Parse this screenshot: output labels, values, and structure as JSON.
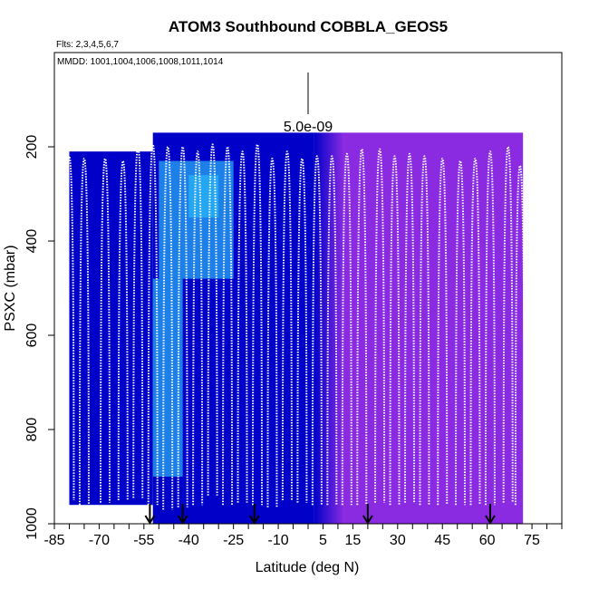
{
  "chart_data": {
    "type": "heatmap",
    "title": "ATOM3 Southbound COBBLA_GEOS5",
    "flights_note": "Flts: 2,3,4,5,6,7",
    "dates_note": "MMDD: 1001,1004,1006,1008,1011,1014",
    "xlabel": "Latitude (deg N)",
    "ylabel": "PSXC (mbar)",
    "xlim": [
      -85,
      85
    ],
    "ylim": [
      1000,
      0
    ],
    "x_ticks": [
      -85,
      -70,
      -55,
      -40,
      -25,
      -10,
      5,
      15,
      30,
      45,
      60,
      75
    ],
    "x_tick_labels": [
      "-85",
      "-70",
      "-55",
      "-40",
      "-25",
      "-10",
      "5",
      "15",
      "30",
      "45",
      "60",
      "75"
    ],
    "y_ticks": [
      200,
      400,
      600,
      800,
      1000
    ],
    "y_tick_labels": [
      "200",
      "400",
      "600",
      "800",
      "1000"
    ],
    "scale_bar_label": "5.0e-09",
    "arrow_latitudes": [
      -53,
      -42,
      -18,
      20,
      61
    ],
    "color_scale": {
      "low": "#0000c8",
      "mid": "#29b6f6",
      "high": "#8a2be2"
    },
    "regions": [
      {
        "lat": [
          -80,
          -52
        ],
        "p": [
          210,
          960
        ],
        "shade": "low"
      },
      {
        "lat": [
          -52,
          -17
        ],
        "p": [
          170,
          1000
        ],
        "shade": "low"
      },
      {
        "lat": [
          -17,
          2
        ],
        "p": [
          170,
          1000
        ],
        "shade": "low"
      },
      {
        "lat": [
          2,
          12
        ],
        "p": [
          170,
          1000
        ],
        "shade": "transition"
      },
      {
        "lat": [
          12,
          72
        ],
        "p": [
          170,
          1000
        ],
        "shade": "high"
      },
      {
        "lat": [
          -50,
          -25
        ],
        "p": [
          230,
          480
        ],
        "shade": "mid"
      },
      {
        "lat": [
          -52,
          -42
        ],
        "p": [
          480,
          900
        ],
        "shade": "mid"
      },
      {
        "lat": [
          -40,
          -30
        ],
        "p": [
          260,
          350
        ],
        "shade": "mid"
      }
    ],
    "profiles": [
      {
        "lat": -80,
        "top": 220,
        "bottom": 950
      },
      {
        "lat": -75,
        "top": 225,
        "bottom": 960
      },
      {
        "lat": -68,
        "top": 225,
        "bottom": 955
      },
      {
        "lat": -62,
        "top": 230,
        "bottom": 950
      },
      {
        "lat": -57,
        "top": 200,
        "bottom": 945
      },
      {
        "lat": -52,
        "top": 195,
        "bottom": 960
      },
      {
        "lat": -47,
        "top": 200,
        "bottom": 970
      },
      {
        "lat": -42,
        "top": 200,
        "bottom": 965
      },
      {
        "lat": -37,
        "top": 210,
        "bottom": 960
      },
      {
        "lat": -32,
        "top": 195,
        "bottom": 940
      },
      {
        "lat": -27,
        "top": 200,
        "bottom": 960
      },
      {
        "lat": -22,
        "top": 210,
        "bottom": 955
      },
      {
        "lat": -17,
        "top": 195,
        "bottom": 960
      },
      {
        "lat": -12,
        "top": 225,
        "bottom": 965
      },
      {
        "lat": -7,
        "top": 210,
        "bottom": 950
      },
      {
        "lat": -2,
        "top": 225,
        "bottom": 955
      },
      {
        "lat": 3,
        "top": 220,
        "bottom": 960
      },
      {
        "lat": 8,
        "top": 220,
        "bottom": 960
      },
      {
        "lat": 13,
        "top": 215,
        "bottom": 960
      },
      {
        "lat": 18,
        "top": 205,
        "bottom": 960
      },
      {
        "lat": 24,
        "top": 205,
        "bottom": 955
      },
      {
        "lat": 29,
        "top": 220,
        "bottom": 960
      },
      {
        "lat": 34,
        "top": 215,
        "bottom": 955
      },
      {
        "lat": 39,
        "top": 220,
        "bottom": 960
      },
      {
        "lat": 45,
        "top": 225,
        "bottom": 960
      },
      {
        "lat": 51,
        "top": 230,
        "bottom": 960
      },
      {
        "lat": 56,
        "top": 225,
        "bottom": 960
      },
      {
        "lat": 61,
        "top": 210,
        "bottom": 960
      },
      {
        "lat": 67,
        "top": 200,
        "bottom": 955
      },
      {
        "lat": 71,
        "top": 240,
        "bottom": 960
      }
    ]
  }
}
